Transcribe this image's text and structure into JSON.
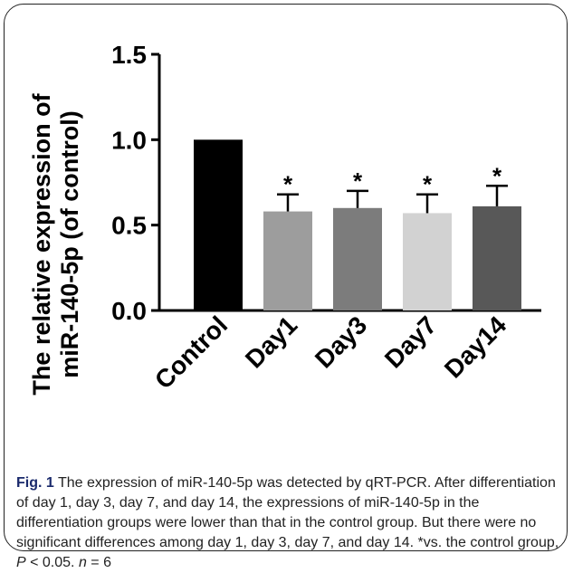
{
  "chart_data": {
    "type": "bar",
    "categories": [
      "Control",
      "Day1",
      "Day3",
      "Day7",
      "Day14"
    ],
    "values": [
      1.0,
      0.58,
      0.6,
      0.57,
      0.61
    ],
    "errors": [
      0,
      0.1,
      0.1,
      0.11,
      0.12
    ],
    "significance": [
      "",
      "*",
      "*",
      "*",
      "*"
    ],
    "bar_colors": [
      "#000000",
      "#9d9d9d",
      "#7c7c7c",
      "#d2d2d2",
      "#585858"
    ],
    "ylim": [
      0,
      1.5
    ],
    "yticks": [
      "0.0",
      "0.5",
      "1.0",
      "1.5"
    ],
    "ylabel_line1": "The relative expression of",
    "ylabel_line2": "miR-140-5p (of control)",
    "xlabel": "",
    "title": ""
  },
  "caption": {
    "label": "Fig. 1",
    "text_main": " The expression of miR-140-5p was detected by qRT-PCR. After differentiation of day 1, day 3, day 7, and day 14, the expressions of miR-140-5p in the differentiation groups were lower than that in the control group. But there were no significant differences among day 1, day 3, day 7, and day 14. *vs. the control group, ",
    "p_symbol": "P",
    "p_text": " < 0.05. ",
    "n_symbol": "n",
    "n_text": " = 6"
  }
}
